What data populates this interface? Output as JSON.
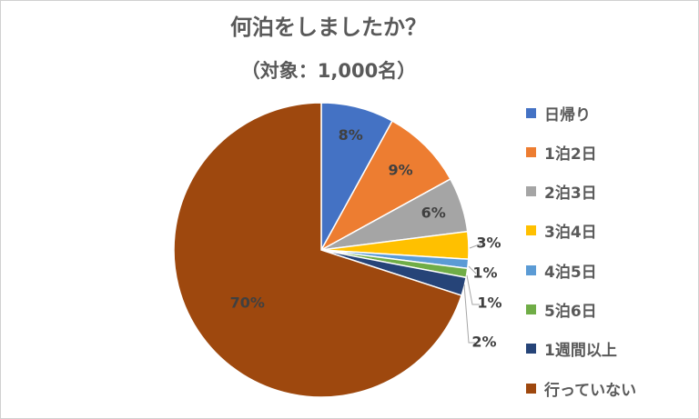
{
  "chart_data": {
    "type": "pie",
    "title": "何泊をしましたか？",
    "subtitle": "（対象：1,000名）",
    "legend_position": "right",
    "slices": [
      {
        "label": "日帰り",
        "value": 8,
        "display": "8%",
        "color": "#4472C4"
      },
      {
        "label": "1泊2日",
        "value": 9,
        "display": "9%",
        "color": "#ED7D31"
      },
      {
        "label": "2泊3日",
        "value": 6,
        "display": "6%",
        "color": "#A5A5A5"
      },
      {
        "label": "3泊4日",
        "value": 3,
        "display": "3%",
        "color": "#FFC000"
      },
      {
        "label": "4泊5日",
        "value": 1,
        "display": "1%",
        "color": "#5B9BD5"
      },
      {
        "label": "5泊6日",
        "value": 1,
        "display": "1%",
        "color": "#70AD47"
      },
      {
        "label": "1週間以上",
        "value": 2,
        "display": "2%",
        "color": "#264478"
      },
      {
        "label": "行っていない",
        "value": 70,
        "display": "70%",
        "color": "#9E480E"
      }
    ]
  }
}
